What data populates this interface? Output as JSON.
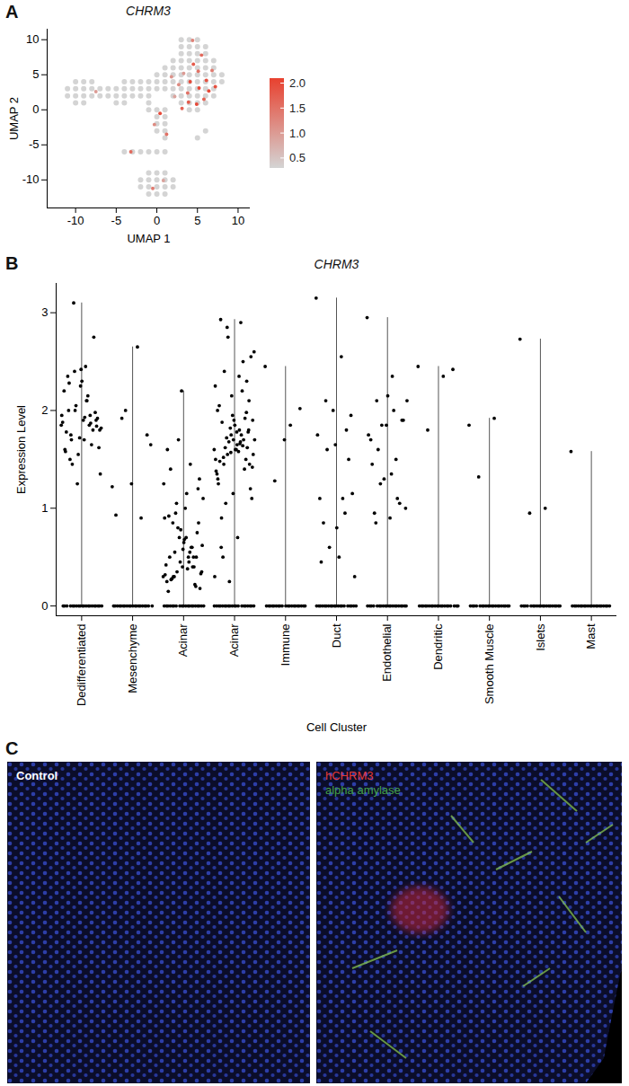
{
  "panel_labels": [
    "A",
    "B",
    "C"
  ],
  "chart_data": [
    {
      "type": "scatter",
      "title": "CHRM3",
      "x_label": "UMAP 1",
      "y_label": "UMAP 2",
      "xlim": [
        -13.5,
        11.5
      ],
      "xticks": [
        -10,
        -5,
        0,
        5,
        10
      ],
      "ylim": [
        -14,
        11.5
      ],
      "yticks": [
        -10,
        -5,
        0,
        5,
        10
      ],
      "color": "#e8412f",
      "colorbar": {
        "range": [
          0.3,
          2.1
        ],
        "ticks": [
          0.5,
          {
            "value": 1,
            "label": "1.0"
          },
          1.5,
          {
            "value": 2,
            "label": "2.0"
          }
        ]
      },
      "x": [
        3,
        4,
        5,
        3,
        4,
        5,
        6,
        3,
        4,
        5,
        6,
        2,
        3,
        4,
        5,
        6,
        7,
        1,
        2,
        3,
        4,
        5,
        6,
        7,
        0,
        1,
        2,
        3,
        4,
        5,
        6,
        7,
        8,
        0,
        1,
        2,
        3,
        4,
        5,
        6,
        7,
        8,
        1,
        2,
        3,
        4,
        5,
        6,
        7,
        2,
        3,
        4,
        5,
        6,
        7,
        3,
        4,
        5,
        6,
        4,
        5,
        -10,
        -9,
        -8,
        -4,
        -3,
        -2,
        -1,
        -11,
        -10,
        -9,
        -8,
        -7,
        -6,
        -5,
        -4,
        -3,
        -2,
        -1,
        0,
        -11,
        -10,
        -9,
        -8,
        -7,
        -6,
        -5,
        -4,
        -3,
        -2,
        -1,
        -10,
        -9,
        -5,
        -4,
        -1,
        -1,
        0,
        1,
        0,
        1,
        0,
        1,
        0,
        1,
        1,
        -4,
        -3,
        -2,
        -1,
        0,
        1,
        5,
        6,
        -1,
        0,
        1,
        -2,
        -1,
        0,
        1,
        2,
        -2,
        -1,
        0,
        1,
        2,
        -1,
        0,
        1,
        4.5,
        5.2,
        3.8,
        6.1,
        2.7,
        4.9,
        5.8,
        3.3,
        6.8,
        4.1,
        2.2,
        5.5,
        4.4,
        3.9,
        6.4,
        1.8,
        5.1,
        7.2,
        3.1,
        0.4,
        -0.3,
        -3.2,
        -0.5,
        0.8,
        -7.5,
        1.2
      ],
      "y": [
        10,
        10,
        10,
        9,
        9,
        9,
        9,
        8,
        8,
        8,
        8,
        7,
        7,
        7,
        7,
        7,
        7,
        6,
        6,
        6,
        6,
        6,
        6,
        6,
        5,
        5,
        5,
        5,
        5,
        5,
        5,
        5,
        5,
        4,
        4,
        4,
        4,
        4,
        4,
        4,
        4,
        4,
        3,
        3,
        3,
        3,
        3,
        3,
        3,
        2,
        2,
        2,
        2,
        2,
        2,
        1,
        1,
        1,
        1,
        0,
        0,
        4,
        4,
        4,
        4,
        4,
        4,
        4,
        3,
        3,
        3,
        3,
        3,
        3,
        3,
        3,
        3,
        3,
        3,
        3,
        2,
        2,
        2,
        2,
        2,
        2,
        2,
        2,
        2,
        2,
        2,
        1,
        1,
        1,
        1,
        1,
        0,
        0,
        0,
        -1,
        -1,
        -2,
        -2,
        -3,
        -3,
        -4,
        -6,
        -6,
        -6,
        -6,
        -6,
        -6,
        -4,
        -3,
        -9,
        -9,
        -9,
        -10,
        -10,
        -10,
        -10,
        -10,
        -11,
        -11,
        -11,
        -11,
        -11,
        -12,
        -12,
        -12,
        6.5,
        3.1,
        2.4,
        4.2,
        3.6,
        0.8,
        1.5,
        5.2,
        5.6,
        4.0,
        1.9,
        7.8,
        9.9,
        1.1,
        2.7,
        4.7,
        5.5,
        3.3,
        0.2,
        -0.5,
        -2.1,
        -6.0,
        -11.2,
        -10.1,
        2.6,
        -3.5
      ],
      "values": [
        0,
        0,
        0,
        0,
        0,
        0,
        0,
        0,
        0,
        0,
        0,
        0,
        0,
        0,
        0,
        0,
        0,
        0,
        0,
        0,
        0,
        0,
        0,
        0,
        0,
        0,
        0,
        0,
        0,
        0,
        0,
        0,
        0,
        0,
        0,
        0,
        0,
        0,
        0,
        0,
        0,
        0,
        0,
        0,
        0,
        0,
        0,
        0,
        0,
        0,
        0,
        0,
        0,
        0,
        0,
        0,
        0,
        0,
        0,
        0,
        0,
        0,
        0,
        0,
        0,
        0,
        0,
        0,
        0,
        0,
        0,
        0,
        0,
        0,
        0,
        0,
        0,
        0,
        0,
        0,
        0,
        0,
        0,
        0,
        0,
        0,
        0,
        0,
        0,
        0,
        0,
        0,
        0,
        0,
        0,
        0,
        0,
        0,
        0,
        0,
        0,
        0,
        0,
        0,
        0,
        0,
        0,
        0,
        0,
        0,
        0,
        0,
        0,
        0,
        0,
        0,
        0,
        0,
        0,
        0,
        0,
        0,
        0,
        0,
        0,
        0,
        0,
        0,
        0,
        0,
        1.8,
        2.0,
        1.5,
        1.9,
        1.2,
        2.0,
        1.7,
        1.0,
        1.4,
        2.0,
        0.9,
        1.6,
        1.3,
        1.8,
        2.0,
        1.1,
        1.5,
        1.9,
        1.7,
        2.0,
        1.2,
        1.6,
        1.4,
        0.9,
        1.0,
        1.5
      ]
    },
    {
      "type": "scatter",
      "title": "CHRM3",
      "x_label": "Cell Cluster",
      "y_label": "Expression Level",
      "ylim": [
        -0.1,
        3.3
      ],
      "yticks": [
        0,
        1,
        2,
        3
      ],
      "categories": [
        "Dedifferentiated",
        "Mesenchyme",
        "Acinar",
        "Acinar",
        "Immune",
        "Duct",
        "Endothelial",
        "Dendritic",
        "Smooth Muscle",
        "Islets",
        "Mast"
      ],
      "values": [
        [
          1.85,
          2.1,
          1.75,
          1.9,
          2.25,
          1.6,
          1.95,
          2.4,
          1.8,
          1.7,
          2.0,
          2.75,
          1.55,
          1.88,
          2.15,
          1.45,
          1.92,
          2.3,
          1.78,
          1.65,
          2.05,
          1.82,
          2.45,
          1.5,
          1.98,
          1.72,
          2.2,
          1.85,
          3.1,
          1.62,
          1.9,
          2.35,
          1.8,
          1.25,
          1.95,
          2.1,
          1.7,
          1.84,
          2.42,
          1.58,
          1.87,
          2.0,
          1.35,
          1.93,
          2.28,
          0,
          0,
          0,
          0,
          0,
          0,
          0,
          0,
          0,
          0,
          0,
          0,
          0,
          0,
          0,
          0,
          0,
          0,
          0,
          0
        ],
        [
          1.22,
          2.65,
          1.92,
          1.75,
          1.25,
          0.93,
          0.9,
          2.0,
          1.65,
          0,
          0,
          0,
          0,
          0,
          0,
          0,
          0,
          0,
          0,
          0,
          0,
          0,
          0,
          0,
          0,
          0,
          0,
          0,
          0
        ],
        [
          0.3,
          0.5,
          0.85,
          1.2,
          0.4,
          0.25,
          0.6,
          1.05,
          0.35,
          0.7,
          1.4,
          0.2,
          0.45,
          0.9,
          0.55,
          0.3,
          1.3,
          0.65,
          0.15,
          0.5,
          0.8,
          1.1,
          0.38,
          0.28,
          0.75,
          2.2,
          0.42,
          0.6,
          0.95,
          0.33,
          1.0,
          0.5,
          0.22,
          0.7,
          1.25,
          0.45,
          0.3,
          0.85,
          0.58,
          1.6,
          0.4,
          0.35,
          0.62,
          1.15,
          0.27,
          0.5,
          0.78,
          0.32,
          1.45,
          0.55,
          0.18,
          0.68,
          0.92,
          0.4,
          1.7,
          0,
          0,
          0,
          0,
          0,
          0,
          0,
          0,
          0,
          0,
          0,
          0,
          0,
          0,
          0,
          0,
          0,
          0,
          0,
          0
        ],
        [
          1.6,
          1.8,
          1.45,
          2.1,
          1.7,
          1.3,
          2.5,
          1.55,
          1.9,
          1.65,
          0.9,
          2.3,
          1.75,
          1.5,
          2.9,
          1.62,
          1.2,
          1.85,
          2.05,
          1.4,
          1.68,
          2.6,
          1.58,
          0.5,
          1.78,
          1.95,
          1.35,
          2.2,
          1.72,
          1.1,
          1.6,
          2.93,
          1.5,
          1.82,
          0.3,
          1.66,
          2.4,
          1.45,
          1.9,
          1.25,
          1.7,
          2.75,
          1.55,
          0.7,
          1.88,
          1.62,
          2.15,
          1.38,
          1.75,
          1.05,
          2.55,
          1.6,
          1.48,
          1.92,
          0.25,
          1.7,
          2.35,
          1.52,
          1.8,
          1.15,
          2.0,
          1.64,
          2.85,
          1.42,
          1.78,
          0.6,
          1.98,
          1.57,
          2.25,
          1.68,
          0,
          0,
          0,
          0,
          0,
          0,
          0,
          0,
          0,
          0,
          0,
          0,
          0,
          0,
          0,
          0,
          0,
          0,
          0,
          0
        ],
        [
          2.45,
          1.85,
          1.28,
          2.02,
          1.7,
          0,
          0,
          0,
          0,
          0,
          0,
          0,
          0,
          0,
          0,
          0,
          0,
          0,
          0,
          0,
          0,
          0,
          0,
          0,
          0
        ],
        [
          3.15,
          2.55,
          2.1,
          1.95,
          1.65,
          1.1,
          0.95,
          0.6,
          0.3,
          0.5,
          0.85,
          1.5,
          2.0,
          1.75,
          1.1,
          1.6,
          1.15,
          0.8,
          0.45,
          1.8,
          0,
          0,
          0,
          0,
          0,
          0,
          0,
          0,
          0,
          0,
          0,
          0,
          0,
          0,
          0,
          0,
          0,
          0,
          0,
          0
        ],
        [
          2.95,
          2.35,
          2.1,
          1.9,
          1.85,
          1.7,
          1.5,
          1.25,
          1.0,
          0.9,
          0.95,
          1.05,
          1.3,
          1.75,
          2.0,
          1.6,
          1.9,
          2.15,
          1.45,
          1.1,
          1.85,
          2.1,
          1.35,
          0.85,
          0,
          0,
          0,
          0,
          0,
          0,
          0,
          0,
          0,
          0,
          0,
          0,
          0,
          0,
          0,
          0,
          0,
          0,
          0,
          0
        ],
        [
          2.45,
          2.35,
          1.8,
          2.42,
          0,
          0,
          0,
          0,
          0,
          0,
          0,
          0,
          0,
          0,
          0,
          0,
          0,
          0,
          0,
          0,
          0,
          0,
          0,
          0
        ],
        [
          1.85,
          1.92,
          1.32,
          0,
          0,
          0,
          0,
          0,
          0,
          0,
          0,
          0,
          0,
          0,
          0,
          0,
          0,
          0,
          0,
          0,
          0,
          0,
          0
        ],
        [
          2.73,
          1.0,
          0.95,
          0,
          0,
          0,
          0,
          0,
          0,
          0,
          0,
          0,
          0,
          0,
          0,
          0,
          0,
          0,
          0,
          0,
          0,
          0,
          0
        ],
        [
          1.58,
          0,
          0,
          0,
          0,
          0,
          0,
          0,
          0,
          0,
          0,
          0,
          0,
          0,
          0,
          0,
          0,
          0,
          0,
          0,
          0
        ]
      ]
    }
  ],
  "image_panels": [
    {
      "labels": [
        {
          "text": "Control",
          "color": "#ffffff"
        }
      ]
    },
    {
      "labels": [
        {
          "text": "hCHRM3",
          "color": "#e53935"
        },
        {
          "text": "alpha amylase",
          "color": "#43a047"
        }
      ]
    }
  ]
}
